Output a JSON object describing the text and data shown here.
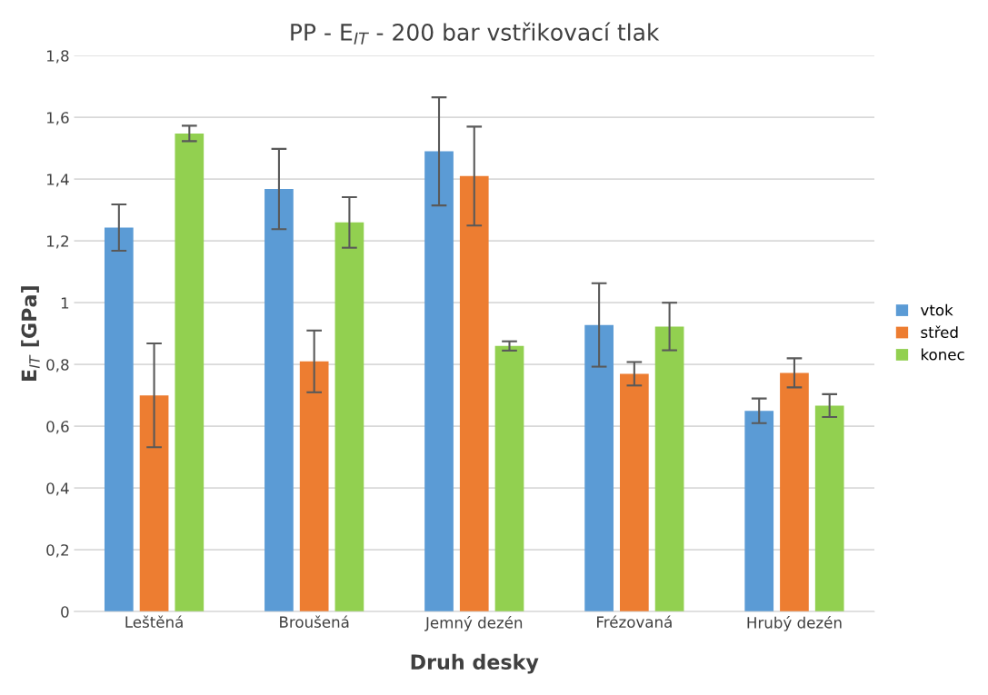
{
  "chart_data": {
    "type": "bar",
    "title": "PP - E$_{IT}$ - 200 bar vstřikovací tlak",
    "xlabel": "Druh desky",
    "ylabel": "E$_{IT}$ [GPa]",
    "categories": [
      "Leštěná",
      "Broušená",
      "Jemný dezén",
      "Frézovaná",
      "Hrubý dezén"
    ],
    "series": [
      {
        "name": "vtok",
        "color": "#5b9bd5",
        "values": [
          1.243,
          1.368,
          1.49,
          0.928,
          0.65
        ],
        "errors": [
          0.075,
          0.13,
          0.175,
          0.135,
          0.04
        ]
      },
      {
        "name": "střed",
        "color": "#ed7d31",
        "values": [
          0.7,
          0.81,
          1.41,
          0.77,
          0.773
        ],
        "errors": [
          0.168,
          0.1,
          0.16,
          0.038,
          0.047
        ]
      },
      {
        "name": "konec",
        "color": "#92d050",
        "values": [
          1.548,
          1.26,
          0.86,
          0.923,
          0.667
        ],
        "errors": [
          0.025,
          0.082,
          0.015,
          0.077,
          0.037
        ]
      }
    ],
    "ylim": [
      0,
      1.8
    ],
    "yticks": [
      0,
      {
        "value": 0.2,
        "label": "0,2"
      },
      {
        "value": 0.4,
        "label": "0,4"
      },
      {
        "value": 0.6,
        "label": "0,6"
      },
      {
        "value": 0.8,
        "label": "0,8"
      },
      1,
      {
        "value": 1.2,
        "label": "1,2"
      },
      {
        "value": 1.4,
        "label": "1,4"
      },
      {
        "value": 1.6,
        "label": "1,6"
      },
      {
        "value": 1.8,
        "label": "1,8"
      }
    ],
    "grid": "y",
    "legend": "right"
  }
}
